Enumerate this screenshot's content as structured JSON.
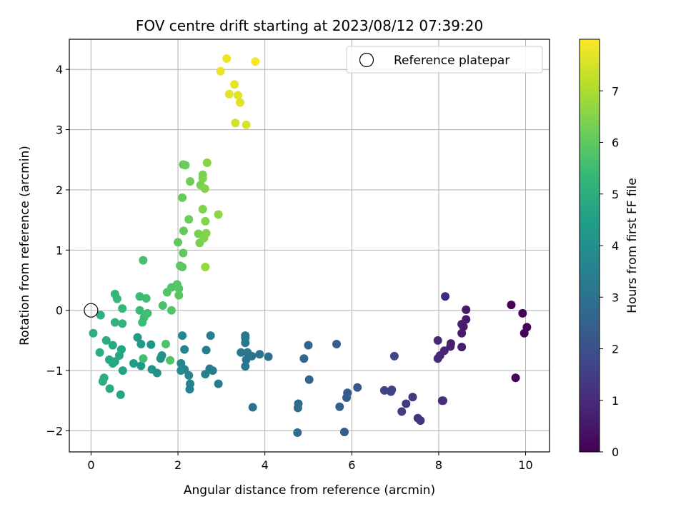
{
  "chart_data": {
    "type": "scatter",
    "title": "FOV centre drift starting at 2023/08/12 07:39:20",
    "xlabel": "Angular distance from reference (arcmin)",
    "ylabel": "Rotation from reference (arcmin)",
    "xlim": [
      -0.5,
      10.55
    ],
    "ylim": [
      -2.35,
      4.5
    ],
    "xticks": [
      0,
      2,
      4,
      6,
      8,
      10
    ],
    "yticks": [
      -2,
      -1,
      0,
      1,
      2,
      3,
      4
    ],
    "grid": true,
    "legend": {
      "placement": "top-right",
      "entries": [
        "Reference platepar"
      ]
    },
    "reference_point": {
      "x": 0,
      "y": 0
    },
    "colorbar": {
      "label": "Hours from first FF file",
      "colormap": "viridis",
      "range": [
        0,
        8
      ],
      "ticks": [
        0,
        1,
        2,
        3,
        4,
        5,
        6,
        7
      ]
    },
    "points": [
      {
        "x": 9.67,
        "y": 0.09,
        "c": 0.05
      },
      {
        "x": 9.93,
        "y": -0.05,
        "c": 0.08
      },
      {
        "x": 10.03,
        "y": -0.28,
        "c": 0.07
      },
      {
        "x": 9.97,
        "y": -0.38,
        "c": 0.1
      },
      {
        "x": 9.77,
        "y": -1.12,
        "c": 0.12
      },
      {
        "x": 8.63,
        "y": 0.01,
        "c": 0.55
      },
      {
        "x": 8.63,
        "y": -0.15,
        "c": 0.57
      },
      {
        "x": 8.57,
        "y": -0.27,
        "c": 0.6
      },
      {
        "x": 8.53,
        "y": -0.38,
        "c": 0.62
      },
      {
        "x": 8.53,
        "y": -0.23,
        "c": 0.65
      },
      {
        "x": 8.53,
        "y": -0.61,
        "c": 0.68
      },
      {
        "x": 8.28,
        "y": -0.55,
        "c": 0.75
      },
      {
        "x": 8.27,
        "y": -0.6,
        "c": 0.78
      },
      {
        "x": 8.13,
        "y": -0.67,
        "c": 0.8
      },
      {
        "x": 8.03,
        "y": -0.75,
        "c": 0.85
      },
      {
        "x": 7.98,
        "y": -0.8,
        "c": 0.88
      },
      {
        "x": 7.98,
        "y": -0.5,
        "c": 0.9
      },
      {
        "x": 8.15,
        "y": 0.23,
        "c": 0.92
      },
      {
        "x": 8.08,
        "y": -1.5,
        "c": 1.0
      },
      {
        "x": 8.1,
        "y": -1.5,
        "c": 1.02
      },
      {
        "x": 7.58,
        "y": -1.83,
        "c": 1.2
      },
      {
        "x": 7.52,
        "y": -1.79,
        "c": 1.25
      },
      {
        "x": 7.4,
        "y": -1.44,
        "c": 1.35
      },
      {
        "x": 7.25,
        "y": -1.55,
        "c": 1.4
      },
      {
        "x": 7.15,
        "y": -1.68,
        "c": 1.45
      },
      {
        "x": 6.9,
        "y": -1.35,
        "c": 1.55
      },
      {
        "x": 6.92,
        "y": -1.32,
        "c": 1.6
      },
      {
        "x": 6.75,
        "y": -1.33,
        "c": 1.65
      },
      {
        "x": 6.98,
        "y": -0.76,
        "c": 1.7
      },
      {
        "x": 6.13,
        "y": -1.28,
        "c": 2.2
      },
      {
        "x": 5.9,
        "y": -1.37,
        "c": 2.25
      },
      {
        "x": 5.88,
        "y": -1.45,
        "c": 2.3
      },
      {
        "x": 5.83,
        "y": -2.02,
        "c": 2.35
      },
      {
        "x": 5.72,
        "y": -1.6,
        "c": 2.4
      },
      {
        "x": 5.65,
        "y": -0.56,
        "c": 2.45
      },
      {
        "x": 5.0,
        "y": -0.58,
        "c": 2.6
      },
      {
        "x": 4.9,
        "y": -0.8,
        "c": 2.65
      },
      {
        "x": 5.02,
        "y": -1.15,
        "c": 2.7
      },
      {
        "x": 4.77,
        "y": -1.55,
        "c": 2.75
      },
      {
        "x": 4.76,
        "y": -1.62,
        "c": 2.8
      },
      {
        "x": 4.75,
        "y": -2.03,
        "c": 2.85
      },
      {
        "x": 4.08,
        "y": -0.77,
        "c": 2.95
      },
      {
        "x": 3.88,
        "y": -0.73,
        "c": 3.0
      },
      {
        "x": 3.72,
        "y": -1.61,
        "c": 3.05
      },
      {
        "x": 3.7,
        "y": -0.76,
        "c": 3.08
      },
      {
        "x": 3.6,
        "y": -0.7,
        "c": 3.1
      },
      {
        "x": 3.57,
        "y": -0.82,
        "c": 3.12
      },
      {
        "x": 3.55,
        "y": -0.93,
        "c": 3.14
      },
      {
        "x": 3.55,
        "y": -0.42,
        "c": 3.16
      },
      {
        "x": 3.55,
        "y": -0.46,
        "c": 3.18
      },
      {
        "x": 3.55,
        "y": -0.54,
        "c": 3.2
      },
      {
        "x": 3.45,
        "y": -0.7,
        "c": 3.22
      },
      {
        "x": 2.93,
        "y": -1.22,
        "c": 3.3
      },
      {
        "x": 2.8,
        "y": -1.0,
        "c": 3.35
      },
      {
        "x": 2.73,
        "y": -0.97,
        "c": 3.38
      },
      {
        "x": 2.75,
        "y": -0.42,
        "c": 3.4
      },
      {
        "x": 2.65,
        "y": -0.66,
        "c": 3.42
      },
      {
        "x": 2.63,
        "y": -1.06,
        "c": 3.45
      },
      {
        "x": 2.28,
        "y": -1.22,
        "c": 3.55
      },
      {
        "x": 2.27,
        "y": -1.31,
        "c": 3.57
      },
      {
        "x": 2.25,
        "y": -1.08,
        "c": 3.6
      },
      {
        "x": 2.15,
        "y": -0.98,
        "c": 3.63
      },
      {
        "x": 2.15,
        "y": -0.65,
        "c": 3.66
      },
      {
        "x": 2.1,
        "y": -0.42,
        "c": 3.7
      },
      {
        "x": 2.07,
        "y": -0.88,
        "c": 3.73
      },
      {
        "x": 2.07,
        "y": -1.0,
        "c": 3.76
      },
      {
        "x": 1.63,
        "y": -0.75,
        "c": 4.0
      },
      {
        "x": 1.6,
        "y": -0.8,
        "c": 4.05
      },
      {
        "x": 1.52,
        "y": -1.04,
        "c": 4.1
      },
      {
        "x": 1.4,
        "y": -0.98,
        "c": 4.15
      },
      {
        "x": 1.38,
        "y": -0.57,
        "c": 4.2
      },
      {
        "x": 1.15,
        "y": -0.92,
        "c": 4.3
      },
      {
        "x": 1.15,
        "y": -0.56,
        "c": 4.35
      },
      {
        "x": 1.07,
        "y": -0.45,
        "c": 4.4
      },
      {
        "x": 0.98,
        "y": -0.88,
        "c": 4.5
      },
      {
        "x": 0.73,
        "y": -1.0,
        "c": 4.6
      },
      {
        "x": 0.7,
        "y": -0.65,
        "c": 4.65
      },
      {
        "x": 0.68,
        "y": -1.4,
        "c": 4.7
      },
      {
        "x": 0.65,
        "y": -0.75,
        "c": 4.72
      },
      {
        "x": 0.55,
        "y": -0.85,
        "c": 4.75
      },
      {
        "x": 0.5,
        "y": -0.88,
        "c": 4.78
      },
      {
        "x": 0.5,
        "y": -0.58,
        "c": 4.8
      },
      {
        "x": 0.42,
        "y": -0.82,
        "c": 4.83
      },
      {
        "x": 0.43,
        "y": -1.3,
        "c": 4.86
      },
      {
        "x": 0.35,
        "y": -0.5,
        "c": 4.9
      },
      {
        "x": 0.3,
        "y": -1.12,
        "c": 4.93
      },
      {
        "x": 0.27,
        "y": -1.18,
        "c": 4.96
      },
      {
        "x": 0.2,
        "y": -0.7,
        "c": 5.0
      },
      {
        "x": 0.22,
        "y": -0.08,
        "c": 5.02
      },
      {
        "x": 0.05,
        "y": -0.38,
        "c": 5.05
      },
      {
        "x": 0.55,
        "y": -0.2,
        "c": 5.15
      },
      {
        "x": 0.72,
        "y": -0.22,
        "c": 5.2
      },
      {
        "x": 0.72,
        "y": 0.03,
        "c": 5.25
      },
      {
        "x": 0.55,
        "y": 0.27,
        "c": 5.3
      },
      {
        "x": 0.6,
        "y": 0.19,
        "c": 5.33
      },
      {
        "x": 1.12,
        "y": 0.0,
        "c": 5.4
      },
      {
        "x": 1.12,
        "y": 0.23,
        "c": 5.45
      },
      {
        "x": 1.18,
        "y": -0.2,
        "c": 5.48
      },
      {
        "x": 1.22,
        "y": -0.12,
        "c": 5.5
      },
      {
        "x": 1.27,
        "y": 0.2,
        "c": 5.52
      },
      {
        "x": 1.3,
        "y": -0.05,
        "c": 5.55
      },
      {
        "x": 1.2,
        "y": -0.8,
        "c": 5.58
      },
      {
        "x": 1.2,
        "y": 0.83,
        "c": 5.6
      },
      {
        "x": 1.65,
        "y": 0.08,
        "c": 5.7
      },
      {
        "x": 1.72,
        "y": -0.56,
        "c": 5.72
      },
      {
        "x": 1.82,
        "y": -0.83,
        "c": 5.75
      },
      {
        "x": 1.85,
        "y": 0.0,
        "c": 5.78
      },
      {
        "x": 1.75,
        "y": 0.3,
        "c": 5.8
      },
      {
        "x": 1.85,
        "y": 0.38,
        "c": 5.83
      },
      {
        "x": 1.98,
        "y": 0.43,
        "c": 5.86
      },
      {
        "x": 2.02,
        "y": 0.36,
        "c": 5.88
      },
      {
        "x": 2.02,
        "y": 0.25,
        "c": 5.9
      },
      {
        "x": 2.05,
        "y": 0.74,
        "c": 5.95
      },
      {
        "x": 2.1,
        "y": 0.72,
        "c": 5.97
      },
      {
        "x": 2.0,
        "y": 1.13,
        "c": 6.0
      },
      {
        "x": 2.12,
        "y": 0.95,
        "c": 6.02
      },
      {
        "x": 2.13,
        "y": 1.32,
        "c": 6.05
      },
      {
        "x": 2.1,
        "y": 1.87,
        "c": 6.1
      },
      {
        "x": 2.12,
        "y": 2.42,
        "c": 6.12
      },
      {
        "x": 2.17,
        "y": 2.41,
        "c": 6.14
      },
      {
        "x": 2.25,
        "y": 1.51,
        "c": 6.2
      },
      {
        "x": 2.28,
        "y": 2.14,
        "c": 6.22
      },
      {
        "x": 2.47,
        "y": 1.27,
        "c": 6.3
      },
      {
        "x": 2.5,
        "y": 1.12,
        "c": 6.32
      },
      {
        "x": 2.52,
        "y": 2.08,
        "c": 6.35
      },
      {
        "x": 2.57,
        "y": 2.25,
        "c": 6.38
      },
      {
        "x": 2.57,
        "y": 2.19,
        "c": 6.4
      },
      {
        "x": 2.57,
        "y": 1.68,
        "c": 6.42
      },
      {
        "x": 2.6,
        "y": 1.2,
        "c": 6.45
      },
      {
        "x": 2.62,
        "y": 2.02,
        "c": 6.48
      },
      {
        "x": 2.63,
        "y": 1.48,
        "c": 6.5
      },
      {
        "x": 2.65,
        "y": 1.28,
        "c": 6.52
      },
      {
        "x": 2.67,
        "y": 2.45,
        "c": 6.55
      },
      {
        "x": 2.93,
        "y": 1.59,
        "c": 6.6
      },
      {
        "x": 2.63,
        "y": 0.72,
        "c": 6.8
      },
      {
        "x": 3.32,
        "y": 3.11,
        "c": 7.5
      },
      {
        "x": 3.57,
        "y": 3.08,
        "c": 7.55
      },
      {
        "x": 3.43,
        "y": 3.45,
        "c": 7.6
      },
      {
        "x": 3.38,
        "y": 3.57,
        "c": 7.63
      },
      {
        "x": 3.18,
        "y": 3.59,
        "c": 7.66
      },
      {
        "x": 3.3,
        "y": 3.75,
        "c": 7.7
      },
      {
        "x": 2.98,
        "y": 3.97,
        "c": 7.75
      },
      {
        "x": 3.12,
        "y": 4.18,
        "c": 7.8
      },
      {
        "x": 3.78,
        "y": 4.13,
        "c": 7.9
      }
    ]
  }
}
